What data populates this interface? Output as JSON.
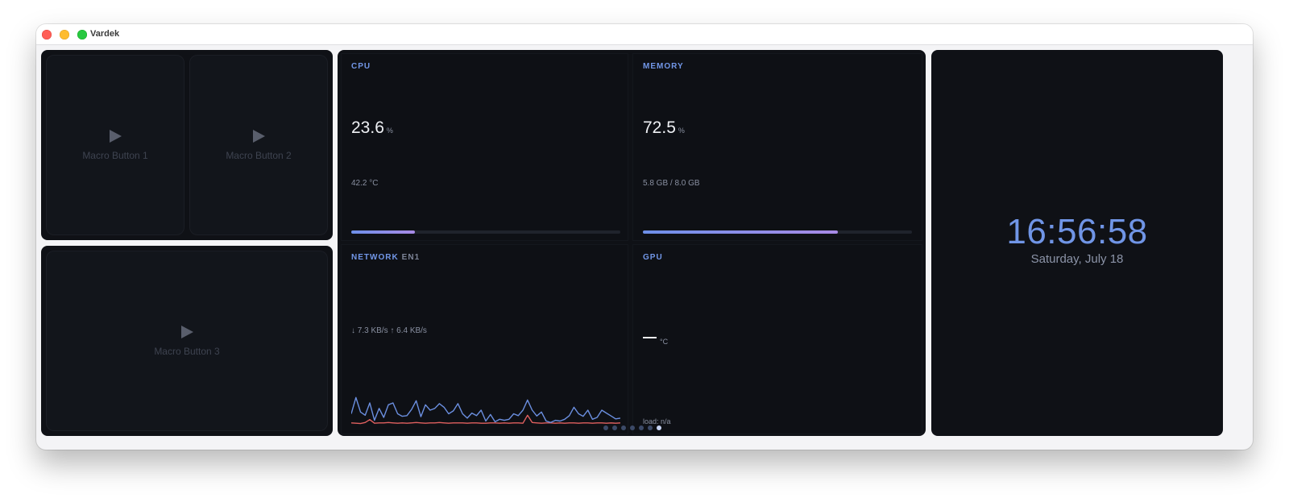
{
  "window": {
    "title": "Vardek"
  },
  "macros": [
    {
      "label": "Macro Button 1",
      "icon": "play-icon"
    },
    {
      "label": "Macro Button 2",
      "icon": "play-icon"
    },
    {
      "label": "Macro Button 3",
      "icon": "play-icon"
    }
  ],
  "cpu": {
    "title": "CPU",
    "value": "23.6",
    "unit": "%",
    "detail": "42.2 °C",
    "usage_fraction": 0.236
  },
  "memory": {
    "title": "MEMORY",
    "value": "72.5",
    "unit": "%",
    "detail": "5.8 GB / 8.0 GB",
    "usage_fraction": 0.725
  },
  "network": {
    "title": "NETWORK",
    "interface": "EN1",
    "rates": "↓ 7.3 KB/s ↑ 6.4 KB/s",
    "download_series": [
      3.0,
      7.5,
      3.5,
      2.6,
      6.0,
      1.2,
      4.5,
      2.0,
      5.5,
      6.0,
      3.0,
      2.3,
      2.5,
      4.2,
      6.6,
      2.2,
      5.5,
      4.0,
      4.5,
      5.8,
      4.8,
      3.0,
      3.8,
      5.8,
      3.0,
      1.8,
      3.2,
      2.5,
      4.0,
      1.0,
      2.8,
      0.8,
      1.5,
      1.2,
      1.5,
      3.0,
      2.5,
      4.0,
      6.8,
      4.0,
      2.4,
      3.5,
      1.0,
      0.6,
      1.2,
      1.0,
      1.5,
      2.5,
      4.8,
      3.0,
      2.3,
      4.0,
      1.5,
      2.0,
      4.0,
      3.2,
      2.4,
      1.6,
      1.8
    ],
    "upload_series": [
      0.5,
      0.4,
      0.3,
      0.6,
      1.4,
      0.4,
      0.5,
      0.5,
      0.6,
      0.5,
      0.4,
      0.5,
      0.4,
      0.5,
      0.6,
      0.5,
      0.4,
      0.5,
      0.5,
      0.6,
      0.5,
      0.4,
      0.5,
      0.5,
      0.5,
      0.4,
      0.5,
      0.5,
      0.4,
      0.4,
      0.5,
      0.5,
      0.4,
      0.5,
      0.4,
      0.5,
      0.5,
      0.4,
      2.6,
      0.6,
      0.5,
      0.4,
      0.5,
      0.5,
      0.4,
      0.5,
      0.4,
      0.5,
      0.5,
      0.4,
      0.5,
      0.5,
      0.4,
      0.5,
      0.5,
      0.4,
      0.5,
      0.4,
      0.5
    ],
    "colors": {
      "download": "#6b8fe0",
      "upload": "#e0605f"
    }
  },
  "gpu": {
    "title": "GPU",
    "value": "—",
    "unit": "°C",
    "load": "load: n/a"
  },
  "pager": {
    "count": 7,
    "active": 6
  },
  "clock": {
    "time": "16:56:58",
    "date": "Saturday, July 18"
  }
}
